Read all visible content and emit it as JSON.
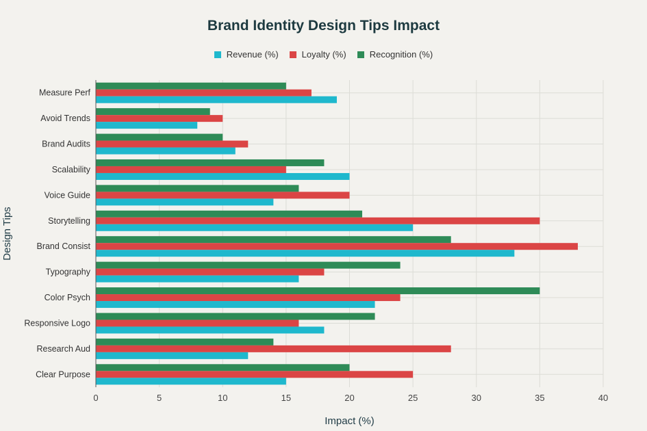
{
  "chart_data": {
    "type": "bar",
    "orientation": "horizontal",
    "title": "Brand Identity Design Tips Impact",
    "xlabel": "Impact (%)",
    "ylabel": "Design Tips",
    "xlim": [
      0,
      40
    ],
    "xticks": [
      0,
      5,
      10,
      15,
      20,
      25,
      30,
      35,
      40
    ],
    "grid": true,
    "legend_position": "top",
    "categories": [
      "Measure Perf",
      "Avoid Trends",
      "Brand Audits",
      "Scalability",
      "Voice Guide",
      "Storytelling",
      "Brand Consist",
      "Typography",
      "Color Psych",
      "Responsive Logo",
      "Research Aud",
      "Clear Purpose"
    ],
    "series": [
      {
        "name": "Revenue (%)",
        "color": "#1fb8cd",
        "values": [
          19,
          8,
          11,
          20,
          14,
          25,
          33,
          16,
          22,
          18,
          12,
          15
        ]
      },
      {
        "name": "Loyalty (%)",
        "color": "#db4545",
        "values": [
          17,
          10,
          12,
          15,
          20,
          35,
          38,
          18,
          24,
          16,
          28,
          25
        ]
      },
      {
        "name": "Recognition (%)",
        "color": "#2e8b57",
        "values": [
          15,
          9,
          10,
          18,
          16,
          21,
          28,
          24,
          35,
          22,
          14,
          20
        ]
      }
    ]
  }
}
